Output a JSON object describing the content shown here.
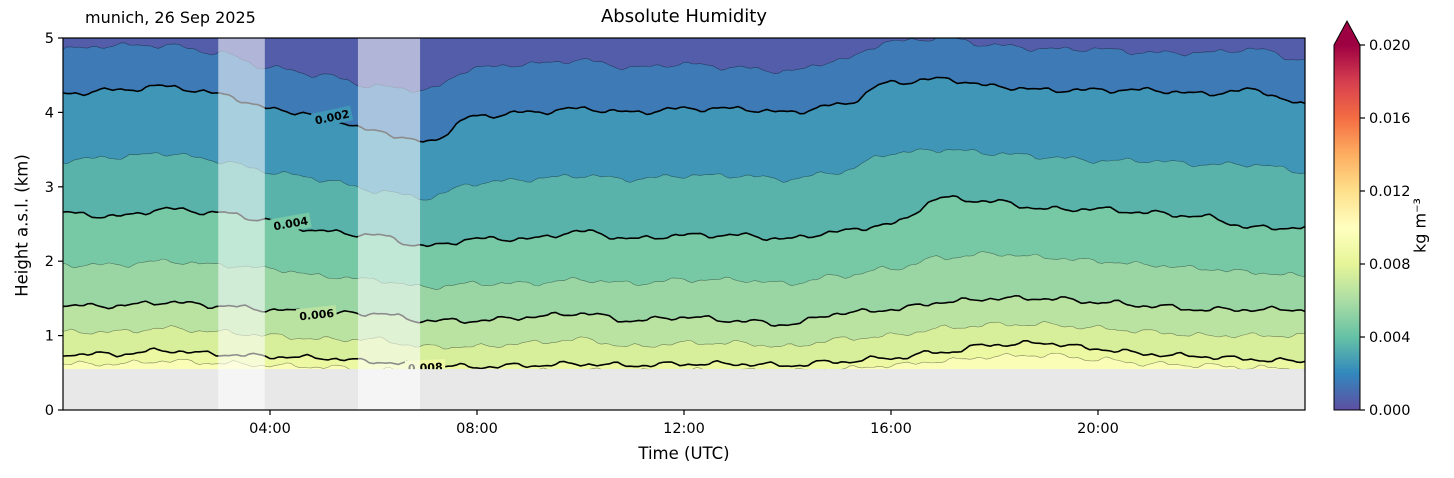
{
  "chart_data": {
    "type": "contour",
    "title": "Absolute Humidity",
    "annotation": "munich, 26 Sep 2025",
    "xlabel": "Time (UTC)",
    "ylabel": "Height a.s.l. (km)",
    "colorbar_label": "kg m⁻³",
    "xlim_hours": [
      0,
      24
    ],
    "ylim_km": [
      0,
      5
    ],
    "x_ticks": [
      {
        "hour": 4,
        "label": "04:00"
      },
      {
        "hour": 8,
        "label": "08:00"
      },
      {
        "hour": 12,
        "label": "12:00"
      },
      {
        "hour": 16,
        "label": "16:00"
      },
      {
        "hour": 20,
        "label": "20:00"
      }
    ],
    "y_ticks": [
      {
        "km": 0,
        "label": "0"
      },
      {
        "km": 1,
        "label": "1"
      },
      {
        "km": 2,
        "label": "2"
      },
      {
        "km": 3,
        "label": "3"
      },
      {
        "km": 4,
        "label": "4"
      },
      {
        "km": 5,
        "label": "5"
      }
    ],
    "colorbar": {
      "min": 0.0,
      "max": 0.02,
      "ticks": [
        {
          "value": 0.0,
          "label": "0.000"
        },
        {
          "value": 0.004,
          "label": "0.004"
        },
        {
          "value": 0.008,
          "label": "0.008"
        },
        {
          "value": 0.012,
          "label": "0.012"
        },
        {
          "value": 0.016,
          "label": "0.016"
        },
        {
          "value": 0.02,
          "label": "0.020"
        }
      ],
      "gradient_colors": [
        "#5e4fa2",
        "#3288bd",
        "#66c2a5",
        "#abdda4",
        "#e6f598",
        "#ffffbf",
        "#fee08b",
        "#fdae61",
        "#f46d43",
        "#d53e4f",
        "#9e0142"
      ],
      "extend_max_color": "#9e0142"
    },
    "band_colors": [
      "#535da9",
      "#3d7ab6",
      "#3f96b7",
      "#59b3ab",
      "#77c9a5",
      "#9ad6a4",
      "#bae3a1",
      "#d7ef9b",
      "#ecf8a2",
      "#f9fdb5"
    ],
    "surface_km": 0.55,
    "surface_color": "#e8e8e8",
    "gap_overlay_color": "rgba(255,255,255,0.55)",
    "gap_bands_hours": [
      [
        3.0,
        3.9
      ],
      [
        5.7,
        6.9
      ]
    ],
    "levels": [
      {
        "value": 0.001,
        "labeled": false,
        "heights_km": [
          4.85,
          4.9,
          4.9,
          4.8,
          4.6,
          4.5,
          4.35,
          4.3,
          4.6,
          4.65,
          4.7,
          4.6,
          4.65,
          4.6,
          4.55,
          4.7,
          4.95,
          5.0,
          4.9,
          4.85,
          4.85,
          4.8,
          4.8,
          4.85,
          4.7
        ]
      },
      {
        "value": 0.002,
        "labeled": true,
        "heights_km": [
          4.25,
          4.3,
          4.35,
          4.25,
          4.05,
          3.95,
          3.75,
          3.6,
          3.95,
          4.0,
          4.05,
          4.0,
          4.05,
          4.05,
          4.0,
          4.1,
          4.4,
          4.45,
          4.35,
          4.3,
          4.3,
          4.3,
          4.25,
          4.3,
          4.1
        ]
      },
      {
        "value": 0.003,
        "labeled": false,
        "heights_km": [
          3.35,
          3.4,
          3.45,
          3.35,
          3.2,
          3.1,
          2.95,
          2.85,
          3.05,
          3.1,
          3.15,
          3.1,
          3.15,
          3.15,
          3.1,
          3.2,
          3.45,
          3.5,
          3.45,
          3.4,
          3.35,
          3.35,
          3.3,
          3.3,
          3.2
        ]
      },
      {
        "value": 0.004,
        "labeled": true,
        "heights_km": [
          2.65,
          2.6,
          2.7,
          2.65,
          2.55,
          2.4,
          2.35,
          2.2,
          2.3,
          2.3,
          2.4,
          2.3,
          2.35,
          2.35,
          2.3,
          2.4,
          2.5,
          2.85,
          2.8,
          2.7,
          2.7,
          2.65,
          2.6,
          2.45,
          2.45
        ]
      },
      {
        "value": 0.005,
        "labeled": false,
        "heights_km": [
          1.95,
          1.95,
          2.0,
          1.95,
          1.9,
          1.8,
          1.75,
          1.65,
          1.7,
          1.7,
          1.75,
          1.7,
          1.75,
          1.75,
          1.7,
          1.8,
          1.9,
          2.05,
          2.1,
          2.05,
          2.0,
          1.95,
          1.9,
          1.85,
          1.8
        ]
      },
      {
        "value": 0.006,
        "labeled": true,
        "heights_km": [
          1.4,
          1.4,
          1.45,
          1.4,
          1.35,
          1.3,
          1.3,
          1.2,
          1.2,
          1.25,
          1.3,
          1.2,
          1.25,
          1.2,
          1.15,
          1.3,
          1.35,
          1.45,
          1.5,
          1.5,
          1.45,
          1.4,
          1.35,
          1.35,
          1.35
        ]
      },
      {
        "value": 0.007,
        "labeled": false,
        "heights_km": [
          1.05,
          1.05,
          1.1,
          1.05,
          1.0,
          0.95,
          0.95,
          0.85,
          0.85,
          0.9,
          0.95,
          0.85,
          0.9,
          0.9,
          0.85,
          0.95,
          1.0,
          1.1,
          1.15,
          1.15,
          1.1,
          1.05,
          1.0,
          1.0,
          1.0
        ]
      },
      {
        "value": 0.008,
        "labeled": true,
        "heights_km": [
          0.75,
          0.75,
          0.8,
          0.75,
          0.72,
          0.7,
          0.65,
          0.6,
          0.58,
          0.6,
          0.62,
          0.6,
          0.62,
          0.62,
          0.6,
          0.65,
          0.7,
          0.78,
          0.88,
          0.9,
          0.82,
          0.75,
          0.72,
          0.68,
          0.65
        ]
      },
      {
        "value": 0.009,
        "labeled": false,
        "heights_km": [
          0.62,
          0.62,
          0.66,
          0.63,
          0.6,
          0.58,
          0.54,
          0.5,
          0.5,
          0.52,
          0.53,
          0.52,
          0.53,
          0.53,
          0.52,
          0.55,
          0.6,
          0.66,
          0.72,
          0.74,
          0.68,
          0.62,
          0.6,
          0.57,
          0.55
        ]
      }
    ],
    "contour_labels": [
      {
        "text": "0.002",
        "level_index": 1,
        "hour": 5.2,
        "rotation_deg": -12
      },
      {
        "text": "0.004",
        "level_index": 3,
        "hour": 4.4,
        "rotation_deg": -10
      },
      {
        "text": "0.006",
        "level_index": 5,
        "hour": 4.9,
        "rotation_deg": -6
      },
      {
        "text": "0.008",
        "level_index": 7,
        "hour": 7.0,
        "rotation_deg": -3
      }
    ]
  }
}
